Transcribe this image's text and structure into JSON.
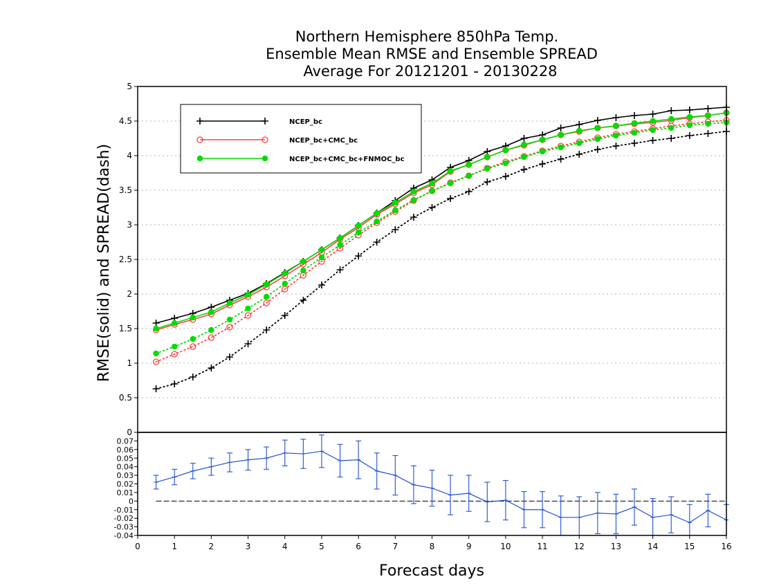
{
  "chart_data": [
    {
      "type": "line",
      "title": [
        "Northern Hemisphere 850hPa Temp.",
        "Ensemble Mean RMSE and Ensemble SPREAD",
        "Average For 20121201 - 20130228"
      ],
      "ylabel": "RMSE(solid) and SPREAD(dash)",
      "ylim": [
        0,
        5
      ],
      "yticks": [
        "0",
        "0.5",
        "1",
        "1.5",
        "2",
        "2.5",
        "3",
        "3.5",
        "4",
        "4.5",
        "5"
      ],
      "grid": true,
      "legend_position": "top-left",
      "x": [
        0.5,
        1,
        1.5,
        2,
        2.5,
        3,
        3.5,
        4,
        4.5,
        5,
        5.5,
        6,
        6.5,
        7,
        7.5,
        8,
        8.5,
        9,
        9.5,
        10,
        10.5,
        11,
        11.5,
        12,
        12.5,
        13,
        13.5,
        14,
        14.5,
        15,
        15.5,
        16
      ],
      "series": [
        {
          "name": "NCEP_bc",
          "style": "solid",
          "marker": "plus",
          "color": "#000000",
          "values": [
            1.58,
            1.65,
            1.72,
            1.81,
            1.91,
            2.01,
            2.15,
            2.31,
            2.47,
            2.64,
            2.81,
            2.99,
            3.17,
            3.35,
            3.53,
            3.65,
            3.83,
            3.93,
            4.06,
            4.14,
            4.25,
            4.3,
            4.4,
            4.45,
            4.51,
            4.55,
            4.58,
            4.6,
            4.65,
            4.66,
            4.68,
            4.7
          ]
        },
        {
          "name": "NCEP_bc+CMC_bc",
          "style": "solid",
          "marker": "open-circle",
          "color": "#ff4040",
          "values": [
            1.48,
            1.56,
            1.63,
            1.71,
            1.84,
            1.96,
            2.1,
            2.26,
            2.43,
            2.6,
            2.79,
            2.96,
            3.15,
            3.3,
            3.46,
            3.58,
            3.77,
            3.87,
            3.98,
            4.08,
            4.15,
            4.23,
            4.3,
            4.35,
            4.4,
            4.43,
            4.46,
            4.48,
            4.51,
            4.55,
            4.58,
            4.62
          ]
        },
        {
          "name": "NCEP_bc+CMC_bc+FNMOC_bc",
          "style": "solid",
          "marker": "filled-circle",
          "color": "#00dd00",
          "values": [
            1.5,
            1.58,
            1.66,
            1.74,
            1.87,
            1.99,
            2.14,
            2.3,
            2.47,
            2.64,
            2.81,
            2.99,
            3.17,
            3.32,
            3.48,
            3.6,
            3.78,
            3.87,
            3.98,
            4.08,
            4.16,
            4.23,
            4.3,
            4.36,
            4.4,
            4.43,
            4.47,
            4.5,
            4.53,
            4.56,
            4.58,
            4.62
          ]
        },
        {
          "name": "NCEP_bc spread",
          "style": "dotted",
          "marker": "plus",
          "color": "#000000",
          "values": [
            0.63,
            0.7,
            0.8,
            0.93,
            1.09,
            1.28,
            1.48,
            1.69,
            1.91,
            2.13,
            2.35,
            2.55,
            2.75,
            2.93,
            3.11,
            3.25,
            3.38,
            3.48,
            3.62,
            3.7,
            3.8,
            3.88,
            3.95,
            4.02,
            4.09,
            4.14,
            4.18,
            4.22,
            4.25,
            4.29,
            4.32,
            4.35
          ]
        },
        {
          "name": "NCEP_bc+CMC_bc spread",
          "style": "dotted",
          "marker": "open-circle",
          "color": "#ff4040",
          "values": [
            1.02,
            1.13,
            1.24,
            1.37,
            1.52,
            1.69,
            1.87,
            2.07,
            2.27,
            2.47,
            2.66,
            2.85,
            3.03,
            3.19,
            3.35,
            3.49,
            3.61,
            3.71,
            3.82,
            3.91,
            3.99,
            4.07,
            4.14,
            4.2,
            4.26,
            4.31,
            4.35,
            4.39,
            4.43,
            4.46,
            4.49,
            4.51
          ]
        },
        {
          "name": "NCEP_bc+CMC_bc+FNMOC_bc spread",
          "style": "dotted",
          "marker": "filled-circle",
          "color": "#00dd00",
          "values": [
            1.14,
            1.24,
            1.35,
            1.48,
            1.63,
            1.79,
            1.96,
            2.15,
            2.34,
            2.53,
            2.71,
            2.89,
            3.05,
            3.21,
            3.36,
            3.49,
            3.6,
            3.71,
            3.81,
            3.89,
            3.98,
            4.06,
            4.12,
            4.18,
            4.24,
            4.29,
            4.33,
            4.37,
            4.4,
            4.44,
            4.46,
            4.48
          ]
        }
      ]
    },
    {
      "type": "line",
      "xlabel": "Forecast days",
      "xlim": [
        0,
        16
      ],
      "xticks": [
        "0",
        "1",
        "2",
        "3",
        "4",
        "5",
        "6",
        "7",
        "8",
        "9",
        "10",
        "11",
        "12",
        "13",
        "14",
        "15",
        "16"
      ],
      "ylim": [
        -0.04,
        0.08
      ],
      "yticks": [
        "-0.04",
        "-0.03",
        "-0.02",
        "-0.01",
        "0",
        "0.01",
        "0.02",
        "0.03",
        "0.04",
        "0.05",
        "0.06",
        "0.07"
      ],
      "zero_line": true,
      "series": [
        {
          "name": "",
          "style": "solid",
          "marker": "error-bar",
          "color": "#2050d0",
          "x": [
            0.5,
            1,
            1.5,
            2,
            2.5,
            3,
            3.5,
            4,
            4.5,
            5,
            5.5,
            6,
            6.5,
            7,
            7.5,
            8,
            8.5,
            9,
            9.5,
            10,
            10.5,
            11,
            11.5,
            12,
            12.5,
            13,
            13.5,
            14,
            14.5,
            15,
            15.5,
            16
          ],
          "values": [
            0.022,
            0.028,
            0.035,
            0.04,
            0.045,
            0.048,
            0.05,
            0.056,
            0.055,
            0.058,
            0.047,
            0.048,
            0.035,
            0.03,
            0.019,
            0.015,
            0.007,
            0.009,
            -0.001,
            0.001,
            -0.01,
            -0.01,
            -0.019,
            -0.019,
            -0.014,
            -0.015,
            -0.007,
            -0.019,
            -0.016,
            -0.025,
            -0.011,
            -0.022
          ],
          "err": [
            0.008,
            0.009,
            0.009,
            0.01,
            0.011,
            0.012,
            0.013,
            0.015,
            0.017,
            0.019,
            0.019,
            0.022,
            0.021,
            0.023,
            0.022,
            0.021,
            0.023,
            0.021,
            0.023,
            0.023,
            0.021,
            0.021,
            0.025,
            0.024,
            0.024,
            0.023,
            0.021,
            0.022,
            0.021,
            0.021,
            0.019,
            0.018
          ]
        }
      ]
    }
  ]
}
